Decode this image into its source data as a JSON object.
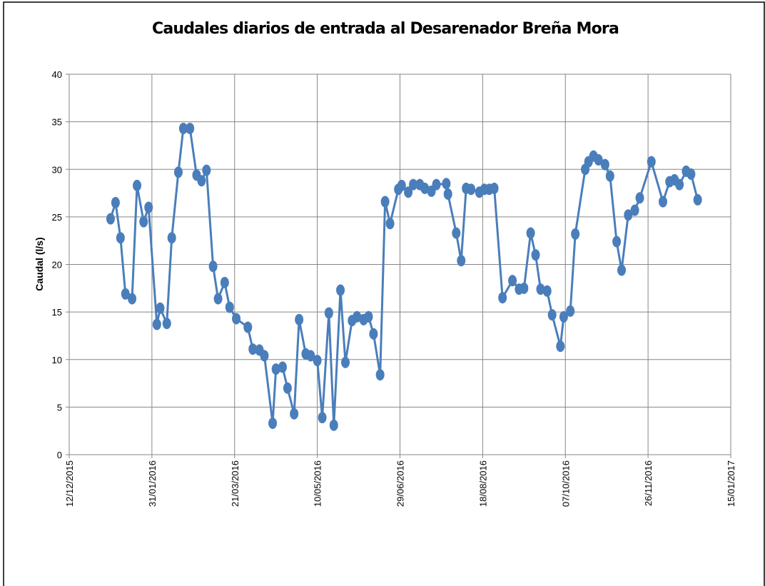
{
  "chart_data": {
    "type": "line",
    "title": "Caudales diarios de entrada al Desarenador Breña Mora",
    "y_label": "Caudal (l/s)",
    "color": "#4a7ebb",
    "grid": true,
    "x": [
      "2016-01-06",
      "2016-01-09",
      "2016-01-12",
      "2016-01-15",
      "2016-01-19",
      "2016-01-22",
      "2016-01-26",
      "2016-01-29",
      "2016-02-03",
      "2016-02-05",
      "2016-02-09",
      "2016-02-12",
      "2016-02-16",
      "2016-02-19",
      "2016-02-23",
      "2016-02-27",
      "2016-03-01",
      "2016-03-04",
      "2016-03-08",
      "2016-03-11",
      "2016-03-15",
      "2016-03-18",
      "2016-03-22",
      "2016-03-29",
      "2016-04-01",
      "2016-04-05",
      "2016-04-08",
      "2016-04-13",
      "2016-04-15",
      "2016-04-19",
      "2016-04-22",
      "2016-04-26",
      "2016-04-29",
      "2016-05-03",
      "2016-05-06",
      "2016-05-10",
      "2016-05-13",
      "2016-05-17",
      "2016-05-20",
      "2016-05-24",
      "2016-05-27",
      "2016-05-31",
      "2016-06-03",
      "2016-06-07",
      "2016-06-10",
      "2016-06-13",
      "2016-06-17",
      "2016-06-20",
      "2016-06-23",
      "2016-06-28",
      "2016-06-30",
      "2016-07-04",
      "2016-07-07",
      "2016-07-11",
      "2016-07-14",
      "2016-07-18",
      "2016-07-21",
      "2016-07-27",
      "2016-07-28",
      "2016-08-02",
      "2016-08-05",
      "2016-08-08",
      "2016-08-11",
      "2016-08-16",
      "2016-08-19",
      "2016-08-22",
      "2016-08-25",
      "2016-08-30",
      "2016-09-05",
      "2016-09-09",
      "2016-09-12",
      "2016-09-16",
      "2016-09-19",
      "2016-09-22",
      "2016-09-26",
      "2016-09-29",
      "2016-10-04",
      "2016-10-06",
      "2016-10-10",
      "2016-10-13",
      "2016-10-19",
      "2016-10-21",
      "2016-10-24",
      "2016-10-27",
      "2016-10-31",
      "2016-11-03",
      "2016-11-07",
      "2016-11-10",
      "2016-11-14",
      "2016-11-18",
      "2016-11-21",
      "2016-11-28",
      "2016-12-05",
      "2016-12-09",
      "2016-12-12",
      "2016-12-15",
      "2016-12-19",
      "2016-12-22",
      "2016-12-26"
    ],
    "values": [
      24.8,
      26.5,
      22.8,
      16.9,
      16.4,
      28.3,
      24.5,
      26.0,
      13.7,
      15.4,
      13.8,
      22.8,
      29.7,
      34.3,
      34.3,
      29.4,
      28.8,
      29.9,
      19.8,
      16.4,
      18.1,
      15.5,
      14.3,
      13.4,
      11.1,
      11.0,
      10.4,
      3.3,
      9.0,
      9.2,
      7.0,
      4.3,
      14.2,
      10.6,
      10.4,
      9.9,
      3.9,
      14.9,
      3.1,
      17.3,
      9.7,
      14.1,
      14.5,
      14.2,
      14.5,
      12.7,
      8.4,
      26.6,
      24.3,
      27.9,
      28.3,
      27.6,
      28.4,
      28.4,
      28.0,
      27.7,
      28.4,
      28.5,
      27.4,
      23.3,
      20.4,
      28.0,
      27.9,
      27.6,
      27.9,
      27.9,
      28.0,
      16.5,
      18.3,
      17.4,
      17.5,
      23.3,
      21.0,
      17.4,
      17.2,
      14.7,
      11.4,
      14.5,
      15.1,
      23.2,
      30.0,
      30.8,
      31.4,
      31.0,
      30.5,
      29.3,
      22.4,
      19.4,
      25.2,
      25.7,
      27.0,
      30.8,
      26.6,
      28.7,
      28.9,
      28.4,
      29.8,
      29.5,
      26.8
    ],
    "xlim": [
      "2015-12-12",
      "2017-01-15"
    ],
    "xticks": [
      {
        "value": "2015-12-12",
        "label": "12/12/2015"
      },
      {
        "value": "2016-01-31",
        "label": "31/01/2016"
      },
      {
        "value": "2016-03-21",
        "label": "21/03/2016"
      },
      {
        "value": "2016-05-10",
        "label": "10/05/2016"
      },
      {
        "value": "2016-06-29",
        "label": "29/06/2016"
      },
      {
        "value": "2016-08-18",
        "label": "18/08/2016"
      },
      {
        "value": "2016-10-07",
        "label": "07/10/2016"
      },
      {
        "value": "2016-11-26",
        "label": "26/11/2016"
      },
      {
        "value": "2017-01-15",
        "label": "15/01/2017"
      }
    ],
    "ylim": [
      0,
      40
    ],
    "yticks": [
      0,
      5,
      10,
      15,
      20,
      25,
      30,
      35,
      40
    ]
  }
}
